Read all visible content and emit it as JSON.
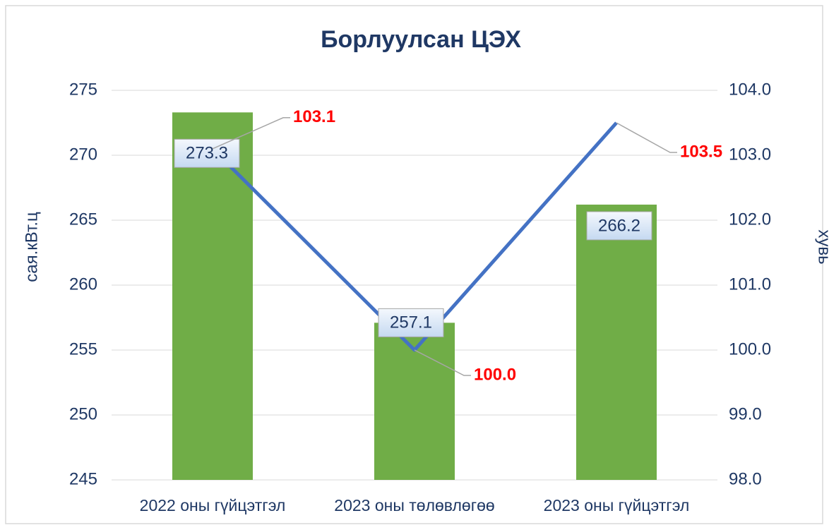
{
  "chart_data": {
    "type": "combo",
    "title": "Борлуулсан ЦЭХ",
    "y_label": "сая.кВт.ц",
    "y2_label": "хувь",
    "categories": [
      "2022 оны  гүйцэтгэл",
      "2023 оны төлөвлөгөө",
      "2023 оны гүйцэтгэл"
    ],
    "series": [
      {
        "type": "bar",
        "color": "#70ad47",
        "values": [
          273.3,
          257.1,
          266.2
        ]
      },
      {
        "type": "line",
        "axis": "y2",
        "color": "#4472c4",
        "values": [
          103.1,
          100.0,
          103.5
        ],
        "value_labels": [
          "103.1",
          "100.0",
          "103.5"
        ]
      }
    ],
    "ylim": [
      245,
      275
    ],
    "yticks": [
      245,
      250,
      255,
      260,
      265,
      270,
      275
    ],
    "y2lim": [
      98,
      104
    ],
    "y2ticks": [
      {
        "value": 98,
        "label": "98.0"
      },
      {
        "value": 99,
        "label": "99.0"
      },
      {
        "value": 100,
        "label": "100.0"
      },
      {
        "value": 101,
        "label": "101.0"
      },
      {
        "value": 102,
        "label": "102.0"
      },
      {
        "value": 103,
        "label": "103.0"
      },
      {
        "value": 104,
        "label": "104.0"
      }
    ],
    "grid": true
  }
}
